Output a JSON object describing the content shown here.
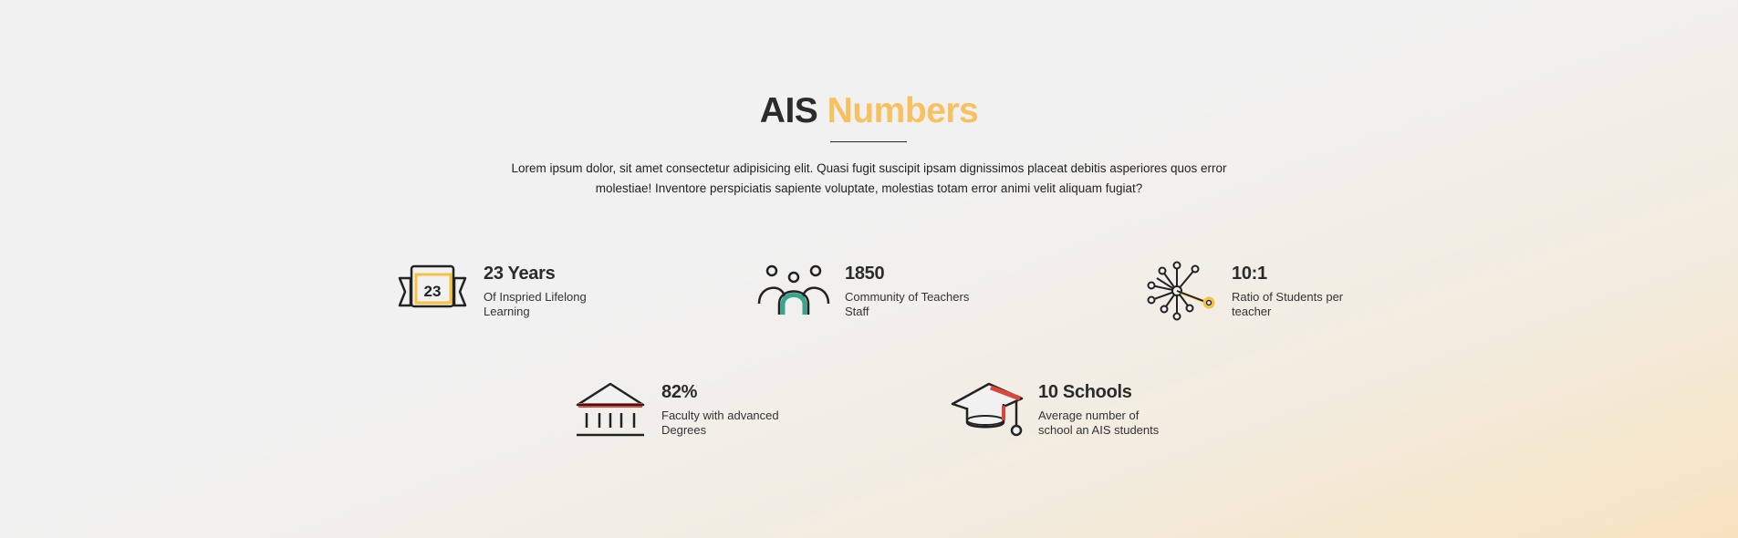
{
  "header": {
    "title_part1": "AIS",
    "title_part2": "Numbers",
    "intro": "Lorem ipsum dolor, sit amet consectetur adipisicing elit. Quasi fugit suscipit ipsam dignissimos placeat debitis asperiores quos error molestiae! Inventore perspiciatis sapiente voluptate, molestias totam error animi velit aliquam fugiat?"
  },
  "colors": {
    "accent": "#f8c15f",
    "dark": "#2b2b2b",
    "teal": "#3aa58f",
    "red": "#d9473c",
    "yellow": "#f6c23e"
  },
  "stats": [
    {
      "icon": "calendar-ribbon-icon",
      "icon_text": "23",
      "value": "23 Years",
      "desc": "Of Inspried Lifelong Learning"
    },
    {
      "icon": "community-people-icon",
      "value": "1850",
      "desc": "Community of Teachers Staff"
    },
    {
      "icon": "network-nodes-icon",
      "value": "10:1",
      "desc": "Ratio of Students per teacher"
    },
    {
      "icon": "institution-building-icon",
      "value": "82%",
      "desc": "Faculty with advanced Degrees"
    },
    {
      "icon": "graduation-cap-icon",
      "value": "10 Schools",
      "desc": "Average number of school an AIS students"
    }
  ]
}
